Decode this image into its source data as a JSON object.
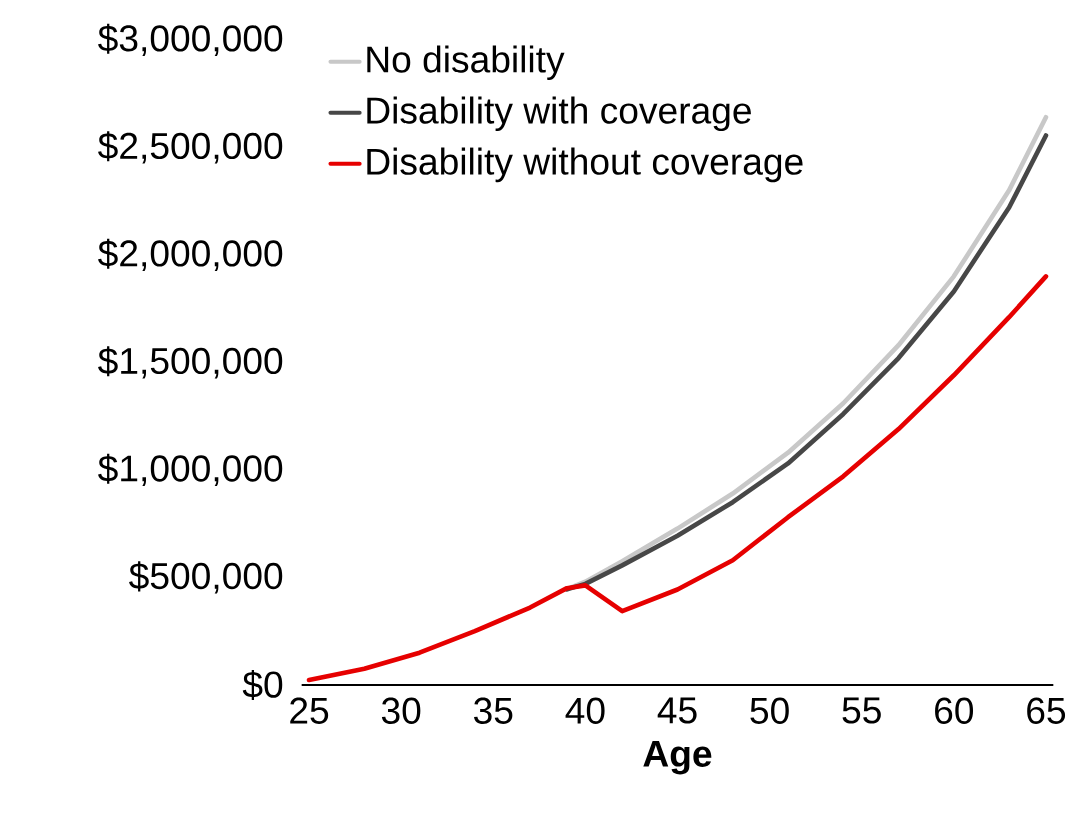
{
  "chart_data": {
    "type": "line",
    "xlabel": "Age",
    "x": [
      25,
      28,
      31,
      34,
      37,
      39,
      40,
      42,
      45,
      48,
      51,
      54,
      57,
      60,
      63,
      65
    ],
    "series": [
      {
        "name": "No disability",
        "color": "#c8c8c8",
        "values": [
          null,
          null,
          null,
          null,
          null,
          445000,
          480000,
          575000,
          727000,
          890000,
          1080000,
          1310000,
          1580000,
          1900000,
          2300000,
          2640000
        ]
      },
      {
        "name": "Disability with coverage",
        "color": "#474747",
        "values": [
          null,
          null,
          null,
          null,
          null,
          445000,
          470000,
          556000,
          694000,
          850000,
          1030000,
          1260000,
          1520000,
          1830000,
          2220000,
          2555000
        ]
      },
      {
        "name": "Disability without coverage",
        "color": "#e60000",
        "values": [
          23000,
          75000,
          150000,
          250000,
          360000,
          450000,
          463000,
          343000,
          444000,
          580000,
          780000,
          970000,
          1190000,
          1440000,
          1710000,
          1900000
        ]
      }
    ],
    "xlim": [
      24.6,
      65.4
    ],
    "ylim": [
      0,
      3000000
    ],
    "xticks": [
      25,
      30,
      35,
      40,
      45,
      50,
      55,
      60,
      65
    ],
    "yticks": [
      {
        "value": 0,
        "label": "$0"
      },
      {
        "value": 500000,
        "label": "$500,000"
      },
      {
        "value": 1000000,
        "label": "$1,000,000"
      },
      {
        "value": 1500000,
        "label": "$1,500,000"
      },
      {
        "value": 2000000,
        "label": "$2,000,000"
      },
      {
        "value": 2500000,
        "label": "$2,500,000"
      },
      {
        "value": 3000000,
        "label": "$3,000,000"
      }
    ],
    "legend": "top left",
    "grid": false,
    "marker": "none",
    "line_style": "solid"
  }
}
